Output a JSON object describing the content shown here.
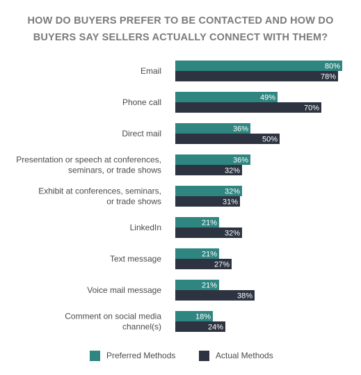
{
  "chart_data": {
    "type": "bar",
    "orientation": "horizontal",
    "title_lines": [
      "HOW DO BUYERS PREFER TO BE CONTACTED AND HOW DO",
      "BUYERS SAY SELLERS ACTUALLY CONNECT WITH THEM?"
    ],
    "categories": [
      [
        "Email"
      ],
      [
        "Phone call"
      ],
      [
        "Direct mail"
      ],
      [
        "Presentation or speech at conferences,",
        "seminars, or trade shows"
      ],
      [
        "Exhibit at conferences, seminars,",
        "or trade shows"
      ],
      [
        "LinkedIn"
      ],
      [
        "Text message"
      ],
      [
        "Voice mail message"
      ],
      [
        "Comment on social media",
        "channel(s)"
      ]
    ],
    "series": [
      {
        "name": "Preferred Methods",
        "color": "#2f8580",
        "values": [
          80,
          49,
          36,
          36,
          32,
          21,
          21,
          21,
          18
        ]
      },
      {
        "name": "Actual Methods",
        "color": "#2d3340",
        "values": [
          78,
          70,
          50,
          32,
          31,
          32,
          27,
          38,
          24
        ]
      }
    ],
    "value_suffix": "%",
    "xlim": [
      0,
      100
    ],
    "grid": false,
    "legend_position": "bottom"
  }
}
